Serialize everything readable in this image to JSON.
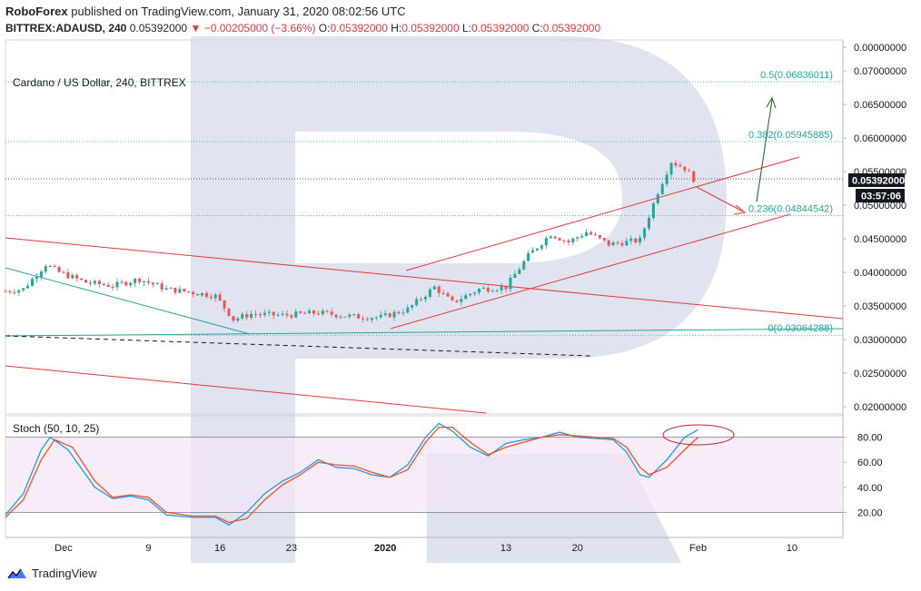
{
  "header": {
    "publisher": "RoboForex",
    "published_text": "published on TradingView.com, January 31, 2020 08:02:56 UTC",
    "symbol": "BITTREX:ADAUSD, 240",
    "last": "0.05392000",
    "change_arrow": "▼",
    "change": "−0.00205000 (−3.66%)",
    "o_label": "O:",
    "o": "0.05392000",
    "h_label": "H:",
    "h": "0.05392000",
    "l_label": "L:",
    "l": "0.05392000",
    "c_label": "C:",
    "c": "0.05392000"
  },
  "legend": {
    "main_title": "Cardano / US Dollar, 240, BITTREX",
    "stoch_title": "Stoch (50, 10, 25)"
  },
  "price_tags": {
    "last_price": "0.05392000",
    "countdown": "03:57:06"
  },
  "fib_labels": [
    {
      "level": 0.5,
      "text": "0.5(0.06836011)",
      "price": 0.06836011
    },
    {
      "level": 0.382,
      "text": "0.382(0.05945885)",
      "price": 0.05945885
    },
    {
      "level": 0.236,
      "text": "0.236(0.04844542)",
      "price": 0.04844542
    },
    {
      "level": 0,
      "text": "0(0.03064288)",
      "price": 0.03064288
    }
  ],
  "footer": {
    "brand": "TradingView"
  },
  "colors": {
    "up": "#26a69a",
    "down": "#ef5350",
    "stoch_k": "#2196f3",
    "stoch_d": "#f4511e",
    "fib": "#26a69a",
    "trend": "#e53935",
    "tag": "#131722",
    "watermark": "#c4cde4"
  },
  "chart_data": [
    {
      "type": "candlestick",
      "title": "Cardano / US Dollar, 240, BITTREX",
      "x_ticks": [
        "Dec",
        "9",
        "16",
        "23",
        "2020",
        "13",
        "20",
        "Feb",
        "10"
      ],
      "y_ticks": [
        "0.00000000",
        "0.07000000",
        "0.06500000",
        "0.06000000",
        "0.05500000",
        "0.05000000",
        "0.04500000",
        "0.04000000",
        "0.03500000",
        "0.03000000",
        "0.02500000",
        "0.02000000"
      ],
      "ylim": [
        0.0185,
        0.0715
      ],
      "last_price": 0.05392,
      "close_path": [
        {
          "t": 0,
          "close": 0.0372
        },
        {
          "t": 4,
          "close": 0.0375
        },
        {
          "t": 9,
          "close": 0.0412
        },
        {
          "t": 12,
          "close": 0.04
        },
        {
          "t": 18,
          "close": 0.0385
        },
        {
          "t": 24,
          "close": 0.038
        },
        {
          "t": 30,
          "close": 0.039
        },
        {
          "t": 36,
          "close": 0.0375
        },
        {
          "t": 42,
          "close": 0.037
        },
        {
          "t": 47,
          "close": 0.0365
        },
        {
          "t": 51,
          "close": 0.033
        },
        {
          "t": 55,
          "close": 0.0338
        },
        {
          "t": 62,
          "close": 0.0336
        },
        {
          "t": 70,
          "close": 0.034
        },
        {
          "t": 78,
          "close": 0.0334
        },
        {
          "t": 84,
          "close": 0.0333
        },
        {
          "t": 90,
          "close": 0.0345
        },
        {
          "t": 96,
          "close": 0.0378
        },
        {
          "t": 100,
          "close": 0.0355
        },
        {
          "t": 106,
          "close": 0.0375
        },
        {
          "t": 112,
          "close": 0.0378
        },
        {
          "t": 117,
          "close": 0.0425
        },
        {
          "t": 122,
          "close": 0.0457
        },
        {
          "t": 126,
          "close": 0.0445
        },
        {
          "t": 130,
          "close": 0.046
        },
        {
          "t": 135,
          "close": 0.0442
        },
        {
          "t": 139,
          "close": 0.0445
        },
        {
          "t": 142,
          "close": 0.0448
        },
        {
          "t": 146,
          "close": 0.052
        },
        {
          "t": 149,
          "close": 0.0565
        },
        {
          "t": 152,
          "close": 0.0555
        },
        {
          "t": 154,
          "close": 0.0539
        }
      ],
      "fib_levels": [
        {
          "level": 0,
          "price": 0.03064288
        },
        {
          "level": 0.236,
          "price": 0.04844542
        },
        {
          "level": 0.382,
          "price": 0.05945885
        },
        {
          "level": 0.5,
          "price": 0.06836011
        }
      ]
    },
    {
      "type": "line",
      "title": "Stoch (50, 10, 25)",
      "y_ticks": [
        "80.00",
        "60.00",
        "40.00",
        "20.00"
      ],
      "ylim": [
        0,
        100
      ],
      "band": [
        20,
        80
      ],
      "series": [
        {
          "name": "",
          "color": "#2196f3",
          "values": [
            {
              "t": 0,
              "y": 18
            },
            {
              "t": 4,
              "y": 35
            },
            {
              "t": 8,
              "y": 70
            },
            {
              "t": 10,
              "y": 80
            },
            {
              "t": 14,
              "y": 70
            },
            {
              "t": 20,
              "y": 40
            },
            {
              "t": 24,
              "y": 31
            },
            {
              "t": 28,
              "y": 33
            },
            {
              "t": 32,
              "y": 30
            },
            {
              "t": 36,
              "y": 18
            },
            {
              "t": 42,
              "y": 16
            },
            {
              "t": 47,
              "y": 16
            },
            {
              "t": 50,
              "y": 10
            },
            {
              "t": 54,
              "y": 20
            },
            {
              "t": 58,
              "y": 35
            },
            {
              "t": 62,
              "y": 45
            },
            {
              "t": 66,
              "y": 52
            },
            {
              "t": 70,
              "y": 62
            },
            {
              "t": 74,
              "y": 56
            },
            {
              "t": 78,
              "y": 55
            },
            {
              "t": 82,
              "y": 50
            },
            {
              "t": 86,
              "y": 48
            },
            {
              "t": 90,
              "y": 58
            },
            {
              "t": 94,
              "y": 80
            },
            {
              "t": 97,
              "y": 91
            },
            {
              "t": 100,
              "y": 85
            },
            {
              "t": 104,
              "y": 72
            },
            {
              "t": 108,
              "y": 65
            },
            {
              "t": 112,
              "y": 75
            },
            {
              "t": 116,
              "y": 78
            },
            {
              "t": 120,
              "y": 80
            },
            {
              "t": 124,
              "y": 84
            },
            {
              "t": 128,
              "y": 80
            },
            {
              "t": 132,
              "y": 79
            },
            {
              "t": 136,
              "y": 78
            },
            {
              "t": 139,
              "y": 68
            },
            {
              "t": 142,
              "y": 50
            },
            {
              "t": 144,
              "y": 48
            },
            {
              "t": 148,
              "y": 62
            },
            {
              "t": 152,
              "y": 80
            },
            {
              "t": 155,
              "y": 86
            }
          ]
        },
        {
          "name": "",
          "color": "#f4511e",
          "values": [
            {
              "t": 0,
              "y": 16
            },
            {
              "t": 4,
              "y": 30
            },
            {
              "t": 8,
              "y": 62
            },
            {
              "t": 11,
              "y": 78
            },
            {
              "t": 15,
              "y": 72
            },
            {
              "t": 20,
              "y": 45
            },
            {
              "t": 24,
              "y": 32
            },
            {
              "t": 28,
              "y": 34
            },
            {
              "t": 32,
              "y": 32
            },
            {
              "t": 36,
              "y": 20
            },
            {
              "t": 42,
              "y": 17
            },
            {
              "t": 47,
              "y": 17
            },
            {
              "t": 50,
              "y": 12
            },
            {
              "t": 54,
              "y": 15
            },
            {
              "t": 58,
              "y": 30
            },
            {
              "t": 62,
              "y": 42
            },
            {
              "t": 66,
              "y": 50
            },
            {
              "t": 70,
              "y": 60
            },
            {
              "t": 74,
              "y": 58
            },
            {
              "t": 78,
              "y": 57
            },
            {
              "t": 82,
              "y": 52
            },
            {
              "t": 86,
              "y": 48
            },
            {
              "t": 90,
              "y": 54
            },
            {
              "t": 94,
              "y": 76
            },
            {
              "t": 97,
              "y": 88
            },
            {
              "t": 100,
              "y": 88
            },
            {
              "t": 104,
              "y": 76
            },
            {
              "t": 108,
              "y": 66
            },
            {
              "t": 112,
              "y": 72
            },
            {
              "t": 116,
              "y": 76
            },
            {
              "t": 120,
              "y": 80
            },
            {
              "t": 124,
              "y": 82
            },
            {
              "t": 128,
              "y": 81
            },
            {
              "t": 132,
              "y": 80
            },
            {
              "t": 136,
              "y": 79
            },
            {
              "t": 139,
              "y": 72
            },
            {
              "t": 142,
              "y": 56
            },
            {
              "t": 144,
              "y": 50
            },
            {
              "t": 148,
              "y": 56
            },
            {
              "t": 152,
              "y": 70
            },
            {
              "t": 155,
              "y": 80
            }
          ]
        }
      ]
    }
  ]
}
